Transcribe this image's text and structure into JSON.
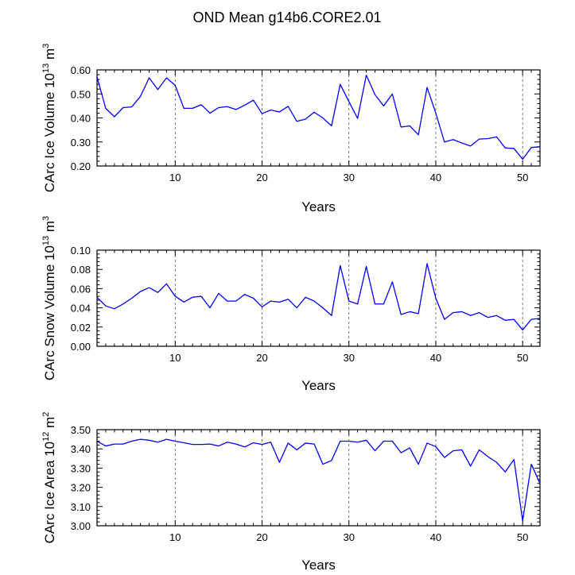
{
  "figure": {
    "title": "OND Mean g14b6.CORE2.01"
  },
  "chart_data": [
    {
      "type": "line",
      "title": "",
      "xlabel": "Years",
      "ylabel": "CArc Ice Volume 10^13 m^3",
      "ylabel_base": "CArc Ice Volume 10",
      "ylabel_exp": "13",
      "ylabel_unit": "m",
      "ylabel_unit_exp": "3",
      "xlim": [
        1,
        52
      ],
      "ylim": [
        0.2,
        0.6
      ],
      "xticks": [
        10,
        20,
        30,
        40,
        50
      ],
      "yticks": [
        0.2,
        0.3,
        0.4,
        0.5,
        0.6
      ],
      "ytick_labels": [
        "0.20",
        "0.30",
        "0.40",
        "0.50",
        "0.60"
      ],
      "vlines": [
        10,
        20,
        30,
        40,
        50
      ],
      "series": [
        {
          "name": "CArc Ice Volume",
          "color": "#0000ff",
          "x": [
            1,
            2,
            3,
            4,
            5,
            6,
            7,
            8,
            9,
            10,
            11,
            12,
            13,
            14,
            15,
            16,
            17,
            18,
            19,
            20,
            21,
            22,
            23,
            24,
            25,
            26,
            27,
            28,
            29,
            30,
            31,
            32,
            33,
            34,
            35,
            36,
            37,
            38,
            39,
            40,
            41,
            42,
            43,
            44,
            45,
            46,
            47,
            48,
            49,
            50,
            51,
            52
          ],
          "values": [
            0.57,
            0.44,
            0.405,
            0.443,
            0.446,
            0.49,
            0.567,
            0.518,
            0.567,
            0.535,
            0.44,
            0.44,
            0.455,
            0.42,
            0.443,
            0.447,
            0.435,
            0.453,
            0.474,
            0.418,
            0.433,
            0.425,
            0.448,
            0.386,
            0.395,
            0.424,
            0.4,
            0.367,
            0.54,
            0.468,
            0.398,
            0.578,
            0.497,
            0.45,
            0.5,
            0.362,
            0.367,
            0.33,
            0.527,
            0.42,
            0.3,
            0.31,
            0.296,
            0.283,
            0.312,
            0.314,
            0.321,
            0.275,
            0.273,
            0.228,
            0.277,
            0.28
          ]
        }
      ]
    },
    {
      "type": "line",
      "title": "",
      "xlabel": "Years",
      "ylabel": "CArc Snow Volume 10^13 m^3",
      "ylabel_base": "CArc Snow Volume 10",
      "ylabel_exp": "13",
      "ylabel_unit": "m",
      "ylabel_unit_exp": "3",
      "xlim": [
        1,
        52
      ],
      "ylim": [
        0.0,
        0.1
      ],
      "xticks": [
        10,
        20,
        30,
        40,
        50
      ],
      "yticks": [
        0.0,
        0.02,
        0.04,
        0.06,
        0.08,
        0.1
      ],
      "ytick_labels": [
        "0.00",
        "0.02",
        "0.04",
        "0.06",
        "0.08",
        "0.10"
      ],
      "vlines": [
        10,
        20,
        30,
        40,
        50
      ],
      "series": [
        {
          "name": "CArc Snow Volume",
          "color": "#0000ff",
          "x": [
            1,
            2,
            3,
            4,
            5,
            6,
            7,
            8,
            9,
            10,
            11,
            12,
            13,
            14,
            15,
            16,
            17,
            18,
            19,
            20,
            21,
            22,
            23,
            24,
            25,
            26,
            27,
            28,
            29,
            30,
            31,
            32,
            33,
            34,
            35,
            36,
            37,
            38,
            39,
            40,
            41,
            42,
            43,
            44,
            45,
            46,
            47,
            48,
            49,
            50,
            51,
            52
          ],
          "values": [
            0.051,
            0.042,
            0.039,
            0.044,
            0.05,
            0.057,
            0.061,
            0.056,
            0.065,
            0.052,
            0.046,
            0.051,
            0.052,
            0.04,
            0.055,
            0.047,
            0.047,
            0.054,
            0.05,
            0.041,
            0.047,
            0.046,
            0.049,
            0.04,
            0.051,
            0.047,
            0.04,
            0.032,
            0.084,
            0.047,
            0.044,
            0.083,
            0.044,
            0.044,
            0.067,
            0.033,
            0.036,
            0.034,
            0.086,
            0.05,
            0.028,
            0.035,
            0.036,
            0.032,
            0.035,
            0.03,
            0.032,
            0.027,
            0.028,
            0.017,
            0.028,
            0.029
          ]
        }
      ]
    },
    {
      "type": "line",
      "title": "",
      "xlabel": "Years",
      "ylabel": "CArc Ice Area 10^12 m^2",
      "ylabel_base": "CArc Ice Area 10",
      "ylabel_exp": "12",
      "ylabel_unit": "m",
      "ylabel_unit_exp": "2",
      "xlim": [
        1,
        52
      ],
      "ylim": [
        3.0,
        3.5
      ],
      "xticks": [
        10,
        20,
        30,
        40,
        50
      ],
      "yticks": [
        3.0,
        3.1,
        3.2,
        3.3,
        3.4,
        3.5
      ],
      "ytick_labels": [
        "3.00",
        "3.10",
        "3.20",
        "3.30",
        "3.40",
        "3.50"
      ],
      "vlines": [
        10,
        20,
        30,
        40,
        50
      ],
      "series": [
        {
          "name": "CArc Ice Area",
          "color": "#0000ff",
          "x": [
            1,
            2,
            3,
            4,
            5,
            6,
            7,
            8,
            9,
            10,
            11,
            12,
            13,
            14,
            15,
            16,
            17,
            18,
            19,
            20,
            21,
            22,
            23,
            24,
            25,
            26,
            27,
            28,
            29,
            30,
            31,
            32,
            33,
            34,
            35,
            36,
            37,
            38,
            39,
            40,
            41,
            42,
            43,
            44,
            45,
            46,
            47,
            48,
            49,
            50,
            51,
            52
          ],
          "values": [
            3.44,
            3.415,
            3.425,
            3.425,
            3.44,
            3.45,
            3.445,
            3.435,
            3.45,
            3.44,
            3.432,
            3.423,
            3.423,
            3.425,
            3.415,
            3.435,
            3.425,
            3.41,
            3.432,
            3.423,
            3.435,
            3.33,
            3.43,
            3.395,
            3.43,
            3.425,
            3.32,
            3.34,
            3.44,
            3.44,
            3.435,
            3.445,
            3.39,
            3.44,
            3.44,
            3.38,
            3.405,
            3.32,
            3.43,
            3.412,
            3.355,
            3.39,
            3.395,
            3.31,
            3.395,
            3.36,
            3.33,
            3.28,
            3.345,
            3.025,
            3.32,
            3.22
          ]
        }
      ]
    }
  ]
}
